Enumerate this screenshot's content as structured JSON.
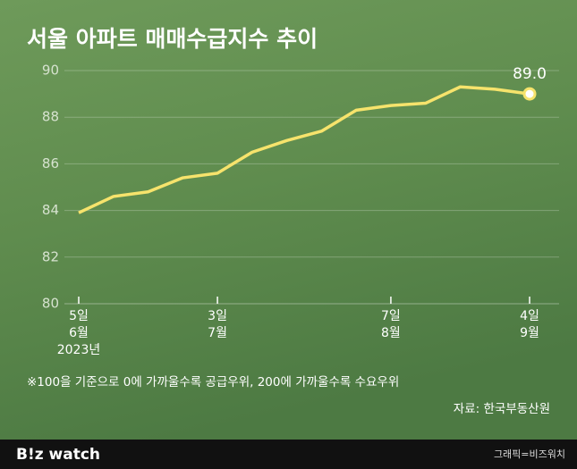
{
  "chart_data": {
    "type": "line",
    "title": "서울 아파트 매매수급지수 추이",
    "categories": [
      [
        "5일",
        "6월",
        "2023년"
      ],
      null,
      null,
      null,
      [
        "3일",
        "7월"
      ],
      null,
      null,
      null,
      null,
      [
        "7일",
        "8월"
      ],
      null,
      null,
      null,
      [
        "4일",
        "9월"
      ]
    ],
    "values": [
      83.9,
      84.6,
      84.8,
      85.4,
      85.6,
      86.5,
      87.0,
      87.4,
      88.3,
      88.5,
      88.6,
      89.3,
      89.2,
      89.0
    ],
    "value_labels": [
      null,
      null,
      null,
      null,
      null,
      null,
      null,
      null,
      null,
      null,
      null,
      null,
      null,
      "89.0"
    ],
    "color": "#f6e36c",
    "ylim": [
      80,
      90
    ],
    "yticks": [
      80,
      82,
      84,
      86,
      88,
      90
    ],
    "grid": true,
    "note": "※100을 기준으로 0에 가까울수록 공급우위, 200에 가까울수록 수요우위",
    "source": "자료: 한국부동산원"
  },
  "footer": {
    "logo": "B!z watch",
    "credit": "그래픽=비즈워치"
  }
}
